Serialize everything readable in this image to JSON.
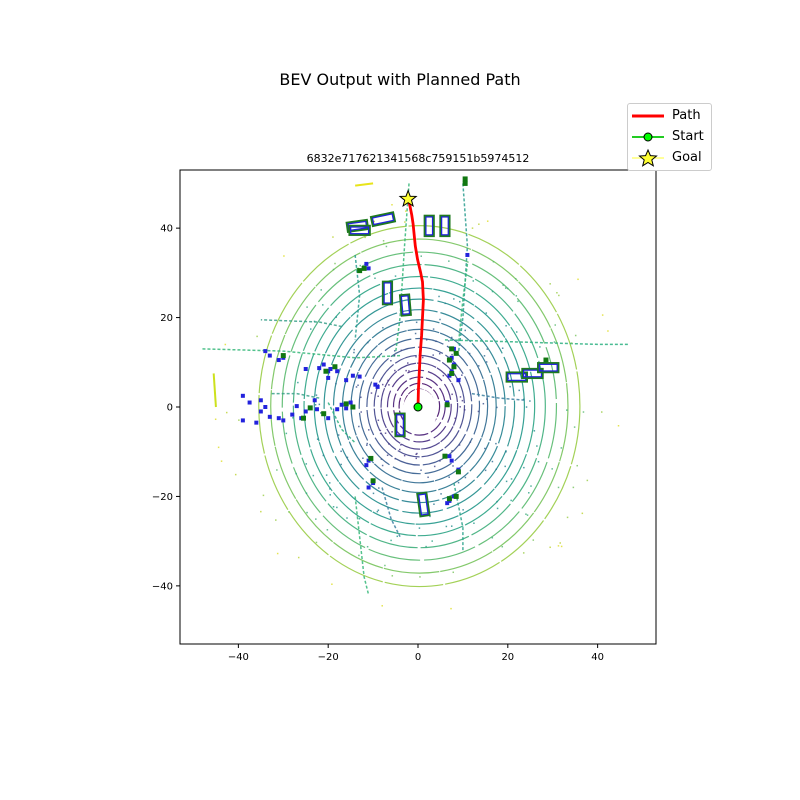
{
  "figure_title": "BEV Output with Planned Path",
  "chart_data": {
    "type": "scatter",
    "title": "6832e717621341568c759151b5974512",
    "xlabel": "",
    "ylabel": "",
    "xlim": [
      -53,
      53
    ],
    "ylim": [
      -53,
      53
    ],
    "xticks": [
      -40,
      -20,
      0,
      20,
      40
    ],
    "yticks": [
      -40,
      -20,
      0,
      20,
      40
    ],
    "grid": false,
    "legend_position": "top-right",
    "colors": {
      "path": "#ff0000",
      "start_face": "#00ff00",
      "start_line": "#22cc22",
      "goal_face": "#ffff33",
      "ego_box": "#003a7a",
      "obstacle": "#2222dd",
      "obstacle_alt": "#117711"
    },
    "series": [
      {
        "name": "Path",
        "kind": "line",
        "x": [
          0,
          0.1,
          0.3,
          0.5,
          0.8,
          1.0,
          1.2,
          1.0,
          0.6,
          -0.1,
          -0.6,
          -0.9,
          -1.1,
          -1.4,
          -1.8,
          -2.2
        ],
        "y": [
          0,
          4,
          8,
          12,
          16,
          20,
          24,
          28,
          30,
          33,
          36,
          39,
          41,
          43,
          45,
          46.5
        ]
      },
      {
        "name": "Start",
        "kind": "marker",
        "x": [
          0
        ],
        "y": [
          0
        ]
      },
      {
        "name": "Goal",
        "kind": "marker",
        "x": [
          -2.2
        ],
        "y": [
          46.5
        ]
      }
    ],
    "boxes": [
      {
        "cx": -13.5,
        "cy": 40.5,
        "w": 4.5,
        "h": 2,
        "angle": 8
      },
      {
        "cx": -13,
        "cy": 39.5,
        "w": 4.5,
        "h": 2,
        "angle": 0
      },
      {
        "cx": -7.8,
        "cy": 42,
        "w": 5,
        "h": 2,
        "angle": 12
      },
      {
        "cx": 2.5,
        "cy": 40.5,
        "w": 2,
        "h": 4.5,
        "angle": 0
      },
      {
        "cx": 6,
        "cy": 40.5,
        "w": 2,
        "h": 4.5,
        "angle": 0
      },
      {
        "cx": -6.8,
        "cy": 25.5,
        "w": 2,
        "h": 5,
        "angle": 0
      },
      {
        "cx": -2.8,
        "cy": 22.8,
        "w": 2,
        "h": 4.5,
        "angle": 5
      },
      {
        "cx": 22,
        "cy": 6.7,
        "w": 4.5,
        "h": 2,
        "angle": 0
      },
      {
        "cx": 25.5,
        "cy": 7.5,
        "w": 4.5,
        "h": 2,
        "angle": 0
      },
      {
        "cx": 29,
        "cy": 8.8,
        "w": 4.5,
        "h": 2,
        "angle": 0
      },
      {
        "cx": -4,
        "cy": -4,
        "w": 2,
        "h": 5,
        "angle": 0
      },
      {
        "cx": 1.2,
        "cy": -21.8,
        "w": 2,
        "h": 5,
        "angle": 8
      }
    ],
    "obstacles": [
      [
        -11.5,
        32
      ],
      [
        -11,
        31
      ],
      [
        -12,
        31
      ],
      [
        11,
        34
      ],
      [
        -9.5,
        5
      ],
      [
        -9,
        4.5
      ],
      [
        -13,
        6.8
      ],
      [
        -14.5,
        7
      ],
      [
        -16,
        6
      ],
      [
        -19.5,
        8.5
      ],
      [
        -20,
        8
      ],
      [
        -21,
        9.5
      ],
      [
        -22,
        8.7
      ],
      [
        -25,
        8.5
      ],
      [
        -30,
        11
      ],
      [
        -31,
        10.5
      ],
      [
        -33,
        11.5
      ],
      [
        -34,
        12.5
      ],
      [
        -39,
        2.5
      ],
      [
        -37.5,
        1
      ],
      [
        -35,
        1.5
      ],
      [
        -34,
        0
      ],
      [
        -35,
        -1
      ],
      [
        -39,
        -3
      ],
      [
        -36,
        -3.5
      ],
      [
        -33,
        -2.2
      ],
      [
        -31,
        -2.5
      ],
      [
        -30,
        -3
      ],
      [
        -28,
        -1.7
      ],
      [
        -27,
        0.2
      ],
      [
        -25,
        -1
      ],
      [
        -22.5,
        -0.5
      ],
      [
        -20,
        -2.5
      ],
      [
        -17,
        0.5
      ],
      [
        -16,
        -0.3
      ],
      [
        -15,
        1
      ],
      [
        -11.5,
        -13
      ],
      [
        -11,
        -12
      ],
      [
        -10,
        -17
      ],
      [
        -11,
        -18
      ],
      [
        7,
        -11
      ],
      [
        7.5,
        -12
      ],
      [
        8,
        -20
      ],
      [
        7,
        -21
      ],
      [
        6.5,
        -21.5
      ],
      [
        9,
        -14
      ],
      [
        8,
        13
      ],
      [
        7.5,
        11
      ],
      [
        8,
        9.5
      ],
      [
        7.5,
        8
      ],
      [
        9,
        6
      ],
      [
        7,
        7
      ],
      [
        6.5,
        1
      ],
      [
        -26,
        -2.5
      ],
      [
        -18,
        8
      ],
      [
        -20,
        6.5
      ],
      [
        -23,
        1.5
      ],
      [
        -18,
        -0.5
      ]
    ],
    "green_markers": [
      [
        -12,
        31
      ],
      [
        -13,
        30.5
      ],
      [
        10.5,
        51
      ],
      [
        10.5,
        50
      ],
      [
        7.5,
        13
      ],
      [
        8.5,
        12
      ],
      [
        7,
        10.5
      ],
      [
        8,
        9
      ],
      [
        7.5,
        7.5
      ],
      [
        28.5,
        10.5
      ],
      [
        6.5,
        0.5
      ],
      [
        -18.5,
        9
      ],
      [
        -20.5,
        8
      ],
      [
        -24,
        -0.2
      ],
      [
        -21,
        -1.5
      ],
      [
        -16,
        0.7
      ],
      [
        -14.5,
        0
      ],
      [
        -30,
        11.5
      ],
      [
        -10.5,
        -11.5
      ],
      [
        -10,
        -16.5
      ],
      [
        6,
        -11
      ],
      [
        8.5,
        -20
      ],
      [
        7,
        -20.5
      ],
      [
        9,
        -14.5
      ],
      [
        -25.5,
        -2.5
      ]
    ]
  }
}
